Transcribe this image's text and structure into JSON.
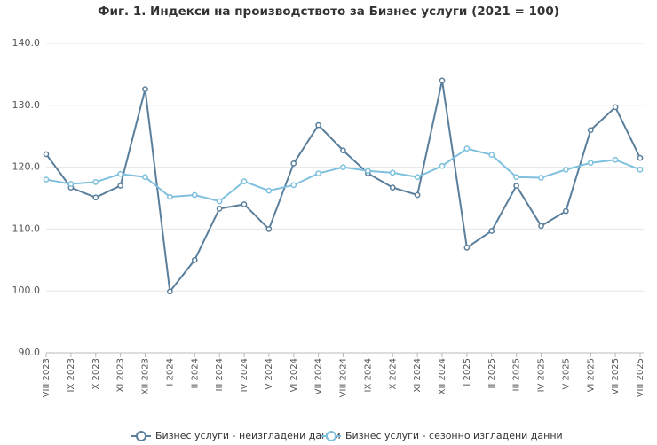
{
  "chart_data": {
    "type": "line",
    "title": "Фиг. 1. Индекси на производството за Бизнес услуги (2021 = 100)",
    "categories": [
      "VIII 2023",
      "IX 2023",
      "X 2023",
      "XI 2023",
      "XII 2023",
      "I 2024",
      "II 2024",
      "III 2024",
      "IV 2024",
      "V 2024",
      "VI 2024",
      "VII 2024",
      "VIII 2024",
      "IX 2024",
      "X 2024",
      "XI 2024",
      "XII 2024",
      "I 2025",
      "II 2025",
      "III 2025",
      "IV 2025",
      "V 2025",
      "VI 2025",
      "VII 2025",
      "VIII 2025"
    ],
    "series": [
      {
        "name": "Бизнес услуги - неизгладени данни",
        "color": "#5a7f9c",
        "values": [
          122.1,
          116.7,
          115.1,
          117.0,
          132.6,
          99.9,
          105.0,
          113.3,
          114.0,
          110.0,
          120.6,
          126.8,
          122.7,
          119.0,
          116.7,
          115.5,
          134.0,
          107.0,
          109.7,
          117.0,
          110.5,
          112.9,
          126.0,
          129.7,
          121.5
        ]
      },
      {
        "name": "Бизнес услуги - сезонно изгладени данни",
        "color": "#7ec0de",
        "values": [
          118.0,
          117.3,
          117.6,
          118.9,
          118.4,
          115.2,
          115.5,
          114.5,
          117.7,
          116.2,
          117.1,
          119.0,
          120.0,
          119.4,
          119.1,
          118.4,
          120.2,
          123.0,
          122.0,
          118.4,
          118.3,
          119.6,
          120.7,
          121.2,
          119.6
        ]
      }
    ],
    "ylim": [
      90,
      140
    ],
    "yticks": [
      {
        "value": 90,
        "label": "90.0"
      },
      {
        "value": 100,
        "label": "100.0"
      },
      {
        "value": 110,
        "label": "110.0"
      },
      {
        "value": 120,
        "label": "120.0"
      },
      {
        "value": 130,
        "label": "130.0"
      },
      {
        "value": 140,
        "label": "140.0"
      }
    ],
    "grid": true,
    "legend": "bottom"
  }
}
